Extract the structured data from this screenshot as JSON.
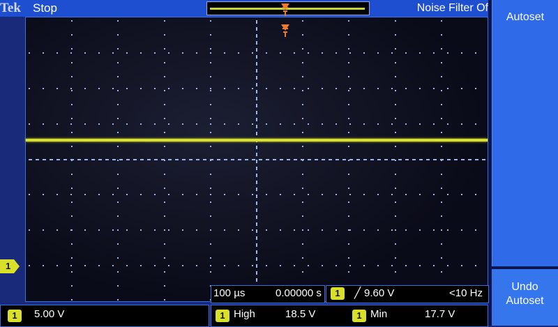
{
  "header": {
    "brand": "Tek",
    "status": "Stop",
    "noise_filter": "Noise Filter Of"
  },
  "side": {
    "autoset_label": "Autoset",
    "undo_label_1": "Undo",
    "undo_label_2": "Autoset"
  },
  "channel_marker": {
    "label": "1"
  },
  "timebase": {
    "scale": "100 µs",
    "position": "0.00000 s"
  },
  "trigger": {
    "channel": "1",
    "slope_symbol": "╱",
    "level": "9.60 V",
    "frequency": "<10 Hz"
  },
  "channel1": {
    "number": "1",
    "scale": "5.00 V"
  },
  "measurements": [
    {
      "channel": "1",
      "label": "High",
      "value": "18.5 V"
    },
    {
      "channel": "1",
      "label": "Min",
      "value": "17.7 V"
    }
  ],
  "colors": {
    "trace": "#d8e02a",
    "accent": "#2f6ae8",
    "trigger_marker": "#f07a2a"
  }
}
